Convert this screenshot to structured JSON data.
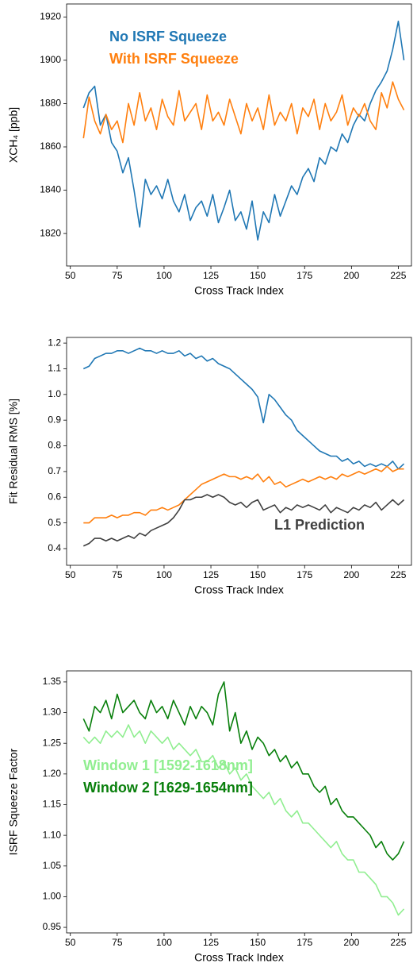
{
  "chart_data": [
    {
      "type": "line",
      "xlabel": "Cross Track Index",
      "ylabel": "XCH₄ [ppb]",
      "x": [
        57,
        60,
        63,
        66,
        69,
        72,
        75,
        78,
        81,
        84,
        87,
        90,
        93,
        96,
        99,
        102,
        105,
        108,
        111,
        114,
        117,
        120,
        123,
        126,
        129,
        132,
        135,
        138,
        141,
        144,
        147,
        150,
        153,
        156,
        159,
        162,
        165,
        168,
        171,
        174,
        177,
        180,
        183,
        186,
        189,
        192,
        195,
        198,
        201,
        204,
        207,
        210,
        213,
        216,
        219,
        222,
        225,
        228
      ],
      "xlim": [
        48,
        232
      ],
      "xticks": [
        50,
        75,
        100,
        125,
        150,
        175,
        200,
        225
      ],
      "ylim": [
        1805,
        1926
      ],
      "yticks": [
        1820,
        1840,
        1860,
        1880,
        1900,
        1920
      ],
      "series": [
        {
          "name": "No ISRF Squeeze",
          "color": "#1f77b4",
          "values": [
            1878,
            1885,
            1888,
            1870,
            1875,
            1862,
            1858,
            1848,
            1855,
            1840,
            1823,
            1845,
            1838,
            1842,
            1836,
            1845,
            1835,
            1830,
            1838,
            1826,
            1832,
            1835,
            1828,
            1838,
            1825,
            1832,
            1840,
            1826,
            1830,
            1822,
            1835,
            1817,
            1830,
            1825,
            1838,
            1828,
            1835,
            1842,
            1838,
            1846,
            1850,
            1844,
            1855,
            1852,
            1860,
            1858,
            1866,
            1862,
            1870,
            1875,
            1872,
            1880,
            1886,
            1890,
            1895,
            1905,
            1918,
            1900
          ]
        },
        {
          "name": "With ISRF Squeeze",
          "color": "#ff7f0e",
          "values": [
            1864,
            1883,
            1872,
            1866,
            1875,
            1868,
            1872,
            1862,
            1880,
            1870,
            1885,
            1872,
            1878,
            1868,
            1882,
            1874,
            1870,
            1886,
            1872,
            1876,
            1880,
            1868,
            1884,
            1872,
            1876,
            1870,
            1882,
            1874,
            1866,
            1880,
            1872,
            1878,
            1868,
            1884,
            1870,
            1876,
            1872,
            1880,
            1866,
            1878,
            1874,
            1882,
            1868,
            1880,
            1872,
            1876,
            1884,
            1870,
            1878,
            1874,
            1880,
            1872,
            1868,
            1885,
            1878,
            1890,
            1882,
            1877
          ]
        }
      ]
    },
    {
      "type": "line",
      "xlabel": "Cross Track Index",
      "ylabel": "Fit Residual RMS [%]",
      "x": [
        57,
        60,
        63,
        66,
        69,
        72,
        75,
        78,
        81,
        84,
        87,
        90,
        93,
        96,
        99,
        102,
        105,
        108,
        111,
        114,
        117,
        120,
        123,
        126,
        129,
        132,
        135,
        138,
        141,
        144,
        147,
        150,
        153,
        156,
        159,
        162,
        165,
        168,
        171,
        174,
        177,
        180,
        183,
        186,
        189,
        192,
        195,
        198,
        201,
        204,
        207,
        210,
        213,
        216,
        219,
        222,
        225,
        228
      ],
      "xlim": [
        48,
        232
      ],
      "xticks": [
        50,
        75,
        100,
        125,
        150,
        175,
        200,
        225
      ],
      "ylim": [
        0.335,
        1.222
      ],
      "yticks": [
        0.4,
        0.5,
        0.6,
        0.7,
        0.8,
        0.9,
        {
          "value": 1,
          "label": "1.0"
        },
        1.1,
        1.2
      ],
      "series": [
        {
          "color": "#1f77b4",
          "values": [
            1.1,
            1.11,
            1.14,
            1.15,
            1.16,
            1.16,
            1.17,
            1.17,
            1.16,
            1.17,
            1.18,
            1.17,
            1.17,
            1.16,
            1.17,
            1.16,
            1.16,
            1.17,
            1.15,
            1.16,
            1.14,
            1.15,
            1.13,
            1.14,
            1.12,
            1.11,
            1.1,
            1.08,
            1.06,
            1.04,
            1.02,
            0.99,
            0.89,
            1.0,
            0.98,
            0.95,
            0.92,
            0.9,
            0.86,
            0.84,
            0.82,
            0.8,
            0.78,
            0.77,
            0.76,
            0.76,
            0.74,
            0.75,
            0.73,
            0.74,
            0.72,
            0.73,
            0.72,
            0.73,
            0.72,
            0.74,
            0.71,
            0.73
          ]
        },
        {
          "color": "#ff7f0e",
          "values": [
            0.5,
            0.5,
            0.52,
            0.52,
            0.52,
            0.53,
            0.52,
            0.53,
            0.53,
            0.54,
            0.54,
            0.53,
            0.55,
            0.55,
            0.56,
            0.55,
            0.56,
            0.57,
            0.59,
            0.61,
            0.63,
            0.65,
            0.66,
            0.67,
            0.68,
            0.69,
            0.68,
            0.68,
            0.67,
            0.68,
            0.67,
            0.69,
            0.66,
            0.68,
            0.65,
            0.66,
            0.64,
            0.65,
            0.66,
            0.67,
            0.66,
            0.67,
            0.68,
            0.67,
            0.68,
            0.67,
            0.69,
            0.68,
            0.69,
            0.7,
            0.69,
            0.7,
            0.71,
            0.7,
            0.72,
            0.7,
            0.71,
            0.71
          ]
        },
        {
          "name": "L1 Prediction",
          "color": "#404040",
          "values": [
            0.41,
            0.42,
            0.44,
            0.44,
            0.43,
            0.44,
            0.43,
            0.44,
            0.45,
            0.44,
            0.46,
            0.45,
            0.47,
            0.48,
            0.49,
            0.5,
            0.52,
            0.55,
            0.59,
            0.59,
            0.6,
            0.6,
            0.61,
            0.6,
            0.61,
            0.6,
            0.58,
            0.57,
            0.58,
            0.56,
            0.58,
            0.59,
            0.55,
            0.56,
            0.57,
            0.54,
            0.56,
            0.55,
            0.57,
            0.56,
            0.57,
            0.56,
            0.55,
            0.57,
            0.54,
            0.56,
            0.55,
            0.54,
            0.56,
            0.55,
            0.57,
            0.56,
            0.58,
            0.55,
            0.57,
            0.59,
            0.57,
            0.59
          ]
        }
      ]
    },
    {
      "type": "line",
      "xlabel": "Cross Track Index",
      "ylabel": "ISRF Squeeze Factor",
      "x": [
        57,
        60,
        63,
        66,
        69,
        72,
        75,
        78,
        81,
        84,
        87,
        90,
        93,
        96,
        99,
        102,
        105,
        108,
        111,
        114,
        117,
        120,
        123,
        126,
        129,
        132,
        135,
        138,
        141,
        144,
        147,
        150,
        153,
        156,
        159,
        162,
        165,
        168,
        171,
        174,
        177,
        180,
        183,
        186,
        189,
        192,
        195,
        198,
        201,
        204,
        207,
        210,
        213,
        216,
        219,
        222,
        225,
        228
      ],
      "xlim": [
        48,
        232
      ],
      "xticks": [
        50,
        75,
        100,
        125,
        150,
        175,
        200,
        225
      ],
      "ylim": [
        0.941,
        1.368
      ],
      "yticks": [
        0.95,
        {
          "value": 1,
          "label": "1.00"
        },
        1.05,
        {
          "value": 1.1,
          "label": "1.10"
        },
        1.15,
        {
          "value": 1.2,
          "label": "1.20"
        },
        1.25,
        {
          "value": 1.3,
          "label": "1.30"
        },
        1.35
      ],
      "series": [
        {
          "name": "Window 1 [1592-1618nm]",
          "color": "#90ee90",
          "values": [
            1.26,
            1.25,
            1.26,
            1.25,
            1.27,
            1.26,
            1.27,
            1.26,
            1.28,
            1.26,
            1.27,
            1.25,
            1.27,
            1.26,
            1.25,
            1.26,
            1.24,
            1.25,
            1.24,
            1.23,
            1.24,
            1.22,
            1.22,
            1.23,
            1.21,
            1.22,
            1.2,
            1.21,
            1.19,
            1.2,
            1.18,
            1.17,
            1.16,
            1.17,
            1.15,
            1.16,
            1.14,
            1.13,
            1.14,
            1.12,
            1.12,
            1.11,
            1.1,
            1.09,
            1.08,
            1.09,
            1.07,
            1.06,
            1.06,
            1.04,
            1.04,
            1.03,
            1.02,
            1.0,
            1.0,
            0.99,
            0.97,
            0.98
          ]
        },
        {
          "name": "Window 2 [1629-1654nm]",
          "color": "#087f0b",
          "values": [
            1.29,
            1.27,
            1.31,
            1.3,
            1.32,
            1.29,
            1.33,
            1.3,
            1.31,
            1.32,
            1.3,
            1.29,
            1.32,
            1.3,
            1.31,
            1.29,
            1.32,
            1.3,
            1.28,
            1.31,
            1.29,
            1.31,
            1.3,
            1.28,
            1.33,
            1.35,
            1.27,
            1.3,
            1.25,
            1.27,
            1.24,
            1.26,
            1.25,
            1.23,
            1.24,
            1.22,
            1.23,
            1.21,
            1.22,
            1.2,
            1.2,
            1.18,
            1.17,
            1.18,
            1.15,
            1.16,
            1.14,
            1.13,
            1.13,
            1.12,
            1.11,
            1.1,
            1.08,
            1.09,
            1.07,
            1.06,
            1.07,
            1.09
          ]
        }
      ]
    }
  ]
}
